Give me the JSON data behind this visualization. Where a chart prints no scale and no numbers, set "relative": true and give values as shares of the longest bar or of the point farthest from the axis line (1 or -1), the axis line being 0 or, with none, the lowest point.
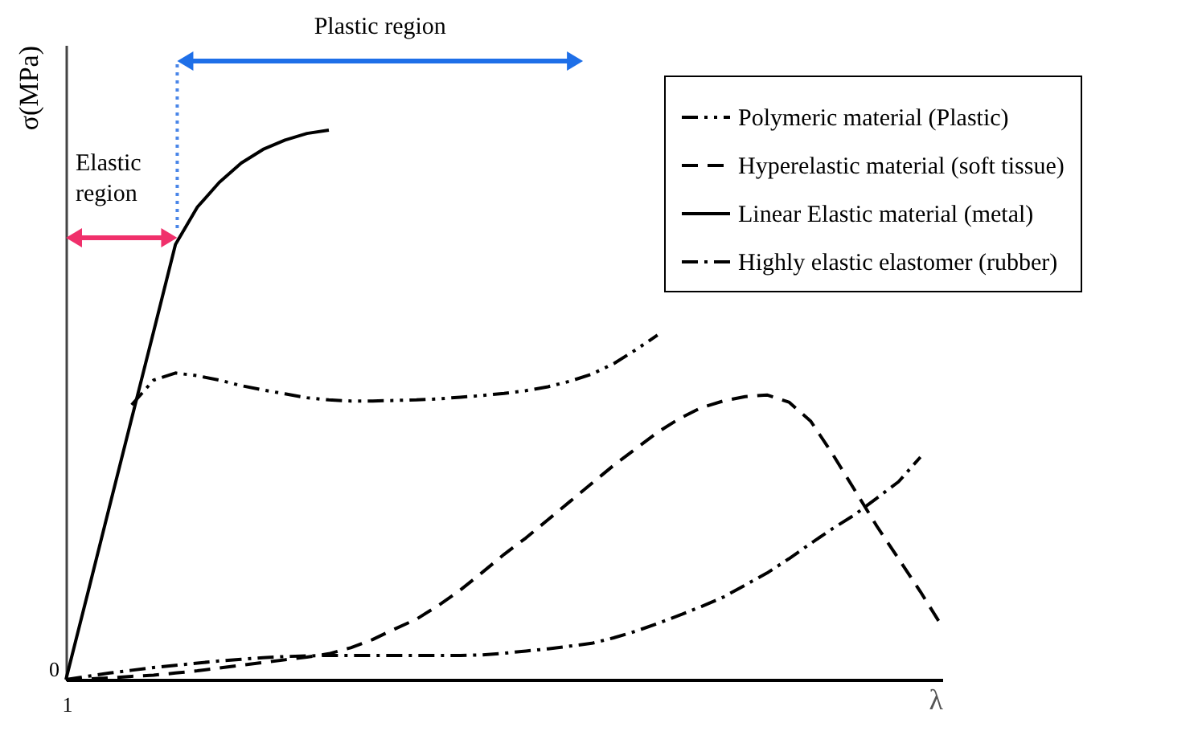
{
  "chart_data": {
    "type": "line",
    "relative": true,
    "ylabel": "σ(MPa)",
    "xlabel": "λ",
    "legend": "top right",
    "categories": [
      null,
      null,
      null,
      null,
      null,
      null,
      null,
      null,
      null,
      null,
      null,
      null,
      null,
      null,
      null,
      null,
      null,
      null,
      null,
      null,
      null,
      null,
      null,
      null,
      null,
      null,
      null,
      null,
      null,
      null,
      null,
      null,
      null,
      null,
      null,
      null,
      null,
      null,
      null,
      null,
      null
    ],
    "series": [
      {
        "name": "Polymeric material (Plastic)",
        "color": "#000000",
        "line_style": "dashdotdot",
        "values": [
          null,
          null,
          null,
          0.5,
          0.545,
          0.558,
          0.553,
          0.545,
          0.535,
          0.527,
          0.52,
          0.513,
          0.509,
          0.507,
          0.507,
          0.508,
          0.509,
          0.511,
          0.514,
          0.517,
          0.521,
          0.526,
          0.533,
          0.543,
          0.556,
          0.575,
          0.6,
          0.627,
          null,
          null,
          null,
          null,
          null,
          null,
          null,
          null,
          null,
          null,
          null,
          null,
          null
        ]
      },
      {
        "name": "Hyperelastic material (soft tissue)",
        "color": "#000000",
        "line_style": "dashed",
        "values": [
          0,
          0.001,
          0.003,
          0.006,
          0.008,
          0.012,
          0.016,
          0.021,
          0.026,
          0.031,
          0.036,
          0.041,
          0.047,
          0.058,
          0.073,
          0.092,
          0.11,
          0.135,
          0.163,
          0.195,
          0.228,
          0.258,
          0.291,
          0.324,
          0.357,
          0.39,
          0.42,
          0.45,
          0.475,
          0.495,
          0.507,
          0.515,
          0.518,
          0.505,
          0.47,
          0.41,
          0.345,
          0.28,
          0.22,
          0.16,
          0.096
        ]
      },
      {
        "name": "Linear Elastic material (metal)",
        "color": "#000000",
        "line_style": "solid",
        "values": [
          0,
          0.158,
          0.317,
          0.475,
          0.633,
          0.792,
          0.86,
          0.905,
          0.94,
          0.965,
          0.982,
          0.994,
          1,
          null,
          null,
          null,
          null,
          null,
          null,
          null,
          null,
          null,
          null,
          null,
          null,
          null,
          null,
          null,
          null,
          null,
          null,
          null,
          null,
          null,
          null,
          null,
          null,
          null,
          null,
          null,
          null
        ]
      },
      {
        "name": "Highly elastic elastomer (rubber)",
        "color": "#000000",
        "line_style": "dashdot",
        "values": [
          0,
          0.006,
          0.012,
          0.017,
          0.022,
          0.026,
          0.03,
          0.034,
          0.037,
          0.04,
          0.042,
          0.043,
          0.044,
          0.044,
          0.044,
          0.044,
          0.044,
          0.044,
          0.044,
          0.045,
          0.048,
          0.052,
          0.056,
          0.061,
          0.066,
          0.076,
          0.088,
          0.102,
          0.117,
          0.133,
          0.15,
          0.172,
          0.194,
          0.22,
          0.248,
          0.275,
          0.3,
          0.33,
          0.36,
          0.405,
          null
        ]
      }
    ],
    "annotations": [
      "Plastic region",
      "Elastic region",
      "0",
      "1"
    ]
  }
}
